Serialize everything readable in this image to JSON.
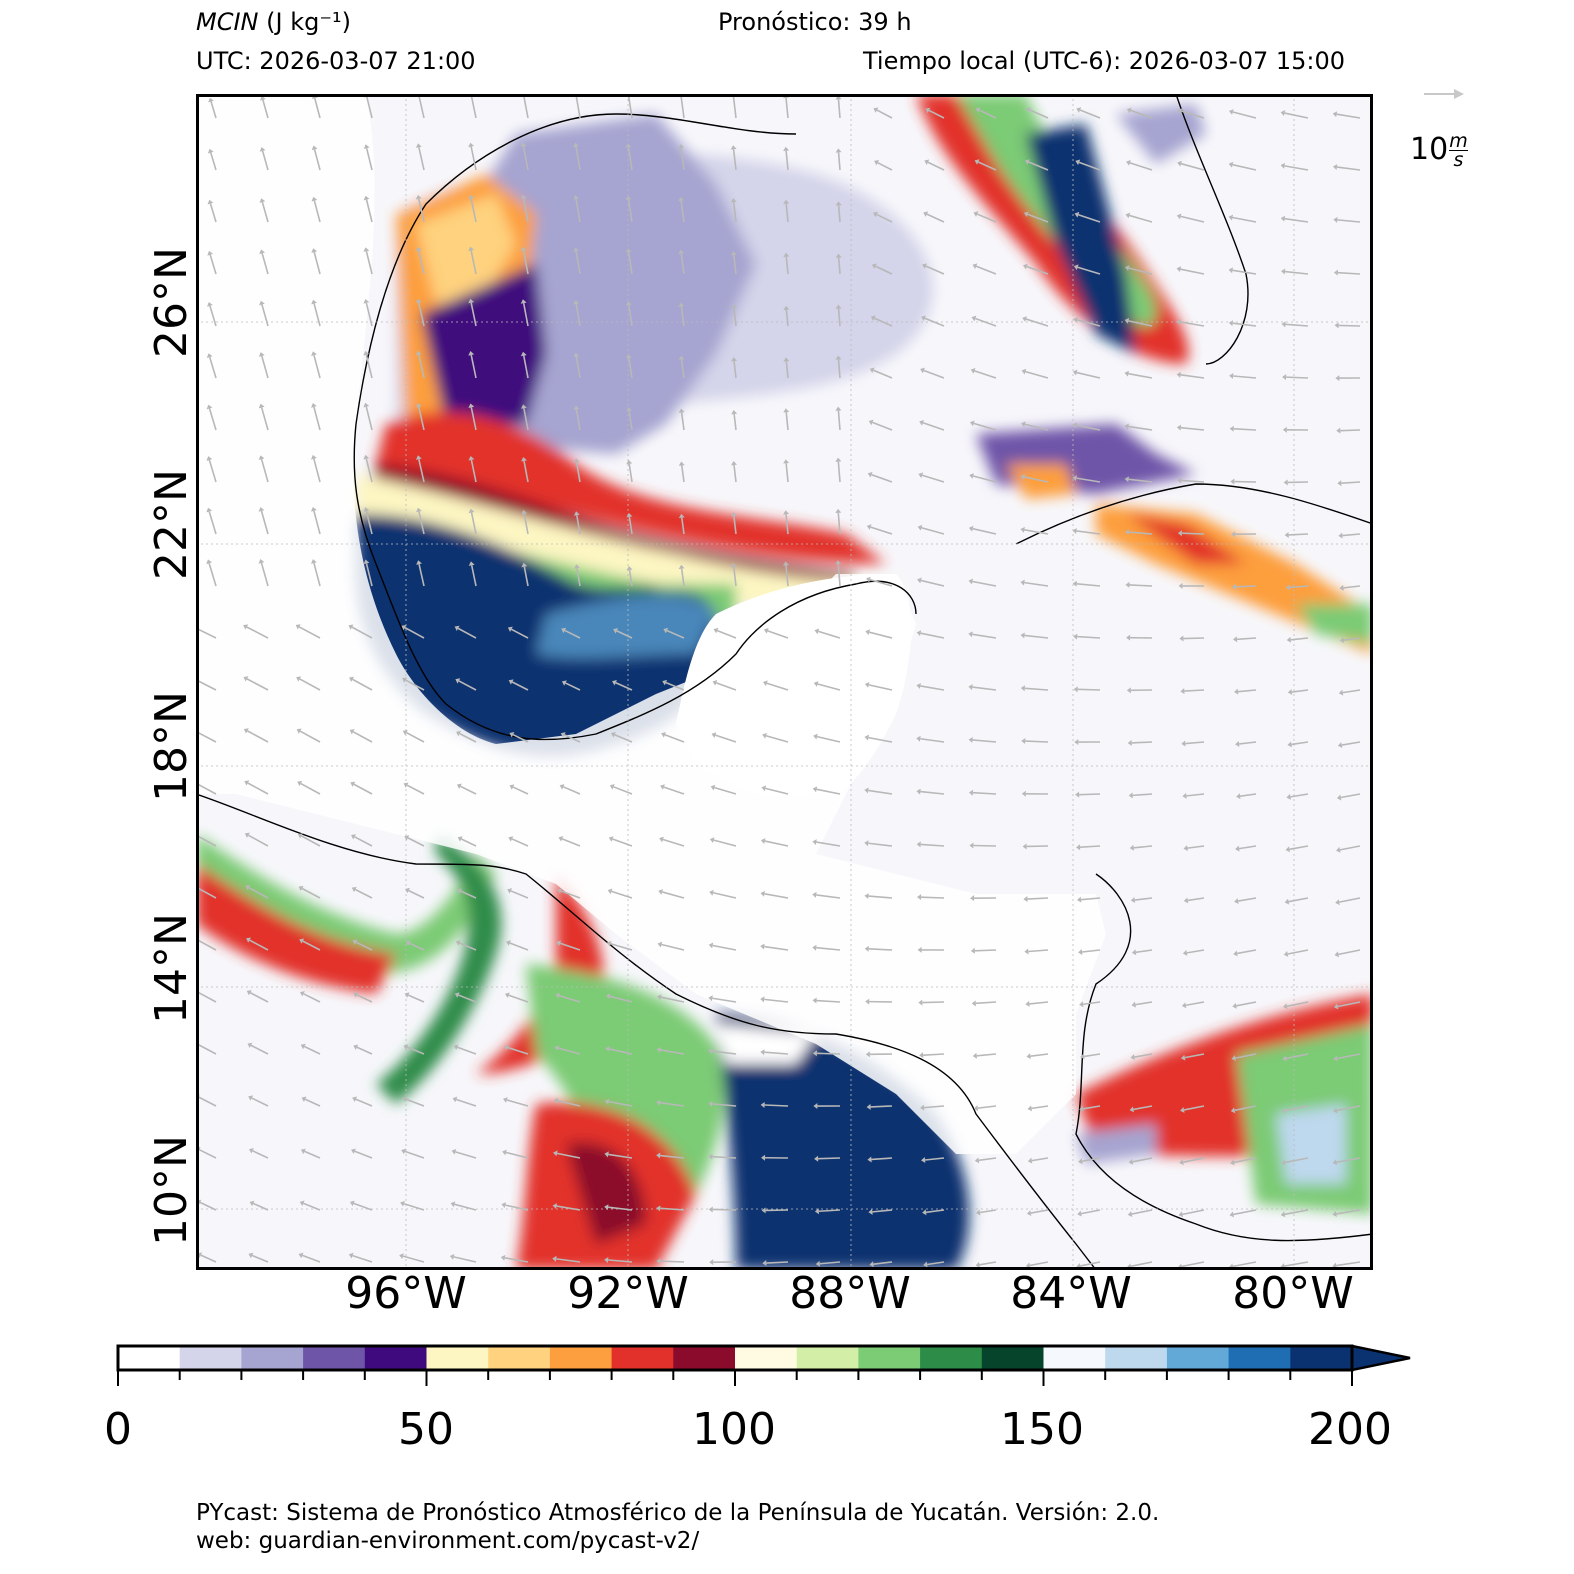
{
  "header": {
    "variable_label": "MCIN",
    "variable_units": "(J kg⁻¹)",
    "forecast": "Pronóstico: 39 h",
    "utc": "UTC:  2026-03-07 21:00",
    "local": "Tiempo local (UTC-6): 2026-03-07 15:00"
  },
  "wind_key": {
    "label": "10",
    "units_num": "m",
    "units_den": "s"
  },
  "map": {
    "lat_labels": [
      "26°N",
      "22°N",
      "18°N",
      "14°N",
      "10°N"
    ],
    "lon_labels": [
      "96°W",
      "92°W",
      "88°W",
      "84°W",
      "80°W"
    ],
    "lat_range": [
      8.5,
      29.5
    ],
    "lon_range": [
      -99.7,
      -78.7
    ]
  },
  "colorbar": {
    "min": 0,
    "max": 200,
    "step": 10,
    "extend": "max",
    "tick_labels": [
      "0",
      "50",
      "100",
      "150",
      "200"
    ],
    "colors": [
      "#ffffff",
      "#d4d4ea",
      "#a6a4d0",
      "#6e55a8",
      "#3f0a7d",
      "#fdf6c2",
      "#fed27e",
      "#fd9f3e",
      "#e2312a",
      "#8b0b2c",
      "#fffbe3",
      "#d3eea6",
      "#7ccb75",
      "#2d8c48",
      "#06452b",
      "#f5f9fd",
      "#bed8ee",
      "#62a9d8",
      "#1f6eb4",
      "#0a3270"
    ]
  },
  "footer": {
    "line1": "PYcast: Sistema de Pronóstico Atmosférico de la Península de Yucatán. Versión: 2.0.",
    "line2": "web: guardian-environment.com/pycast-v2/"
  }
}
